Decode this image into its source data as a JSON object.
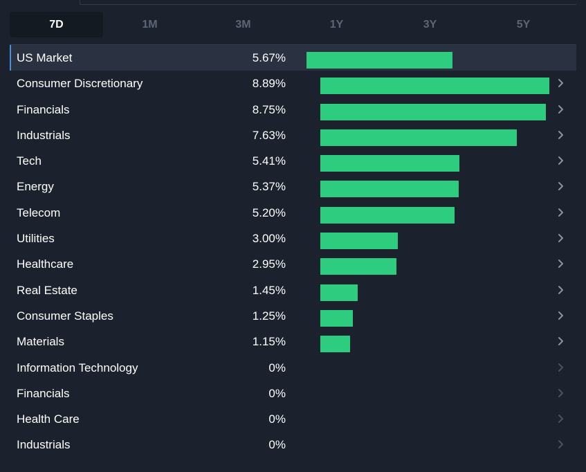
{
  "periods": [
    {
      "label": "7D",
      "active": true
    },
    {
      "label": "1M",
      "active": false
    },
    {
      "label": "3M",
      "active": false
    },
    {
      "label": "1Y",
      "active": false
    },
    {
      "label": "3Y",
      "active": false
    },
    {
      "label": "5Y",
      "active": false
    }
  ],
  "colors": {
    "bar": "#2ecc7f",
    "chevron": "#8a93a3",
    "chevron_disabled": "#4a5262",
    "highlight_accent": "#4b8fd6"
  },
  "max_scale_pct": 9.0,
  "rows": [
    {
      "name": "US Market",
      "value": "5.67%",
      "pct": 5.67,
      "highlight": true,
      "chevron": false
    },
    {
      "name": "Consumer Discretionary",
      "value": "8.89%",
      "pct": 8.89,
      "chevron": true
    },
    {
      "name": "Financials",
      "value": "8.75%",
      "pct": 8.75,
      "chevron": true
    },
    {
      "name": "Industrials",
      "value": "7.63%",
      "pct": 7.63,
      "chevron": true
    },
    {
      "name": "Tech",
      "value": "5.41%",
      "pct": 5.41,
      "chevron": true
    },
    {
      "name": "Energy",
      "value": "5.37%",
      "pct": 5.37,
      "chevron": true
    },
    {
      "name": "Telecom",
      "value": "5.20%",
      "pct": 5.2,
      "chevron": true
    },
    {
      "name": "Utilities",
      "value": "3.00%",
      "pct": 3.0,
      "chevron": true
    },
    {
      "name": "Healthcare",
      "value": "2.95%",
      "pct": 2.95,
      "chevron": true
    },
    {
      "name": "Real Estate",
      "value": "1.45%",
      "pct": 1.45,
      "chevron": true
    },
    {
      "name": "Consumer Staples",
      "value": "1.25%",
      "pct": 1.25,
      "chevron": true
    },
    {
      "name": "Materials",
      "value": "1.15%",
      "pct": 1.15,
      "chevron": true
    },
    {
      "name": "Information Technology",
      "value": "0%",
      "pct": 0,
      "chevron": true,
      "disabled": true
    },
    {
      "name": "Financials",
      "value": "0%",
      "pct": 0,
      "chevron": true,
      "disabled": true
    },
    {
      "name": "Health Care",
      "value": "0%",
      "pct": 0,
      "chevron": true,
      "disabled": true
    },
    {
      "name": "Industrials",
      "value": "0%",
      "pct": 0,
      "chevron": true,
      "disabled": true
    }
  ]
}
